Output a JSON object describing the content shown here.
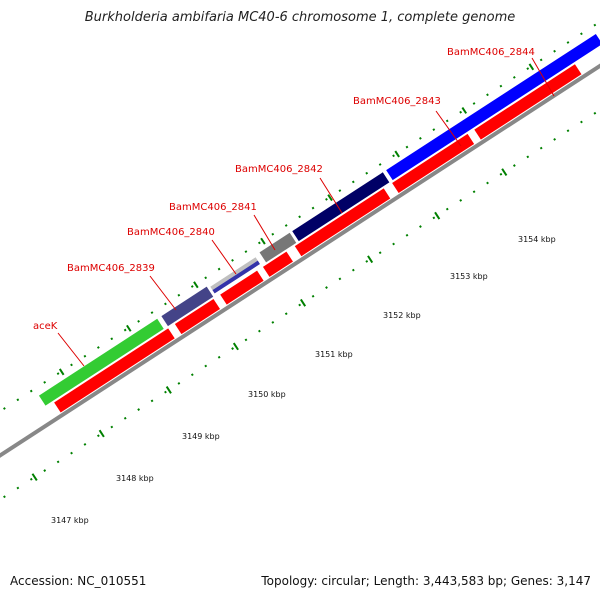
{
  "title": "Burkholderia ambifaria MC40-6 chromosome 1, complete genome",
  "footer": {
    "accession": "Accession: NC_010551",
    "summary": "Topology: circular; Length: 3,443,583 bp; Genes: 3,147"
  },
  "gene_labels": [
    {
      "name": "label-acek",
      "text": "aceK"
    },
    {
      "name": "label-bammc406-2839",
      "text": "BamMC406_2839"
    },
    {
      "name": "label-bammc406-2840",
      "text": "BamMC406_2840"
    },
    {
      "name": "label-bammc406-2841",
      "text": "BamMC406_2841"
    },
    {
      "name": "label-bammc406-2842",
      "text": "BamMC406_2842"
    },
    {
      "name": "label-bammc406-2843",
      "text": "BamMC406_2843"
    },
    {
      "name": "label-bammc406-2844",
      "text": "BamMC406_2844"
    }
  ],
  "scale_ticks": [
    {
      "name": "tick-3147",
      "text": "3147 kbp"
    },
    {
      "name": "tick-3148",
      "text": "3148 kbp"
    },
    {
      "name": "tick-3149",
      "text": "3149 kbp"
    },
    {
      "name": "tick-3150",
      "text": "3150 kbp"
    },
    {
      "name": "tick-3151",
      "text": "3151 kbp"
    },
    {
      "name": "tick-3152",
      "text": "3152 kbp"
    },
    {
      "name": "tick-3153",
      "text": "3153 kbp"
    },
    {
      "name": "tick-3154",
      "text": "3154 kbp"
    }
  ],
  "colors": {
    "label_red": "#dd0000",
    "cds_red": "#ff0000",
    "green": "#33cc33",
    "blue": "#0000ff",
    "navy": "#000066",
    "slate": "#444488",
    "gray": "#777777",
    "tick_green": "#008000",
    "backbone": "#888888"
  }
}
